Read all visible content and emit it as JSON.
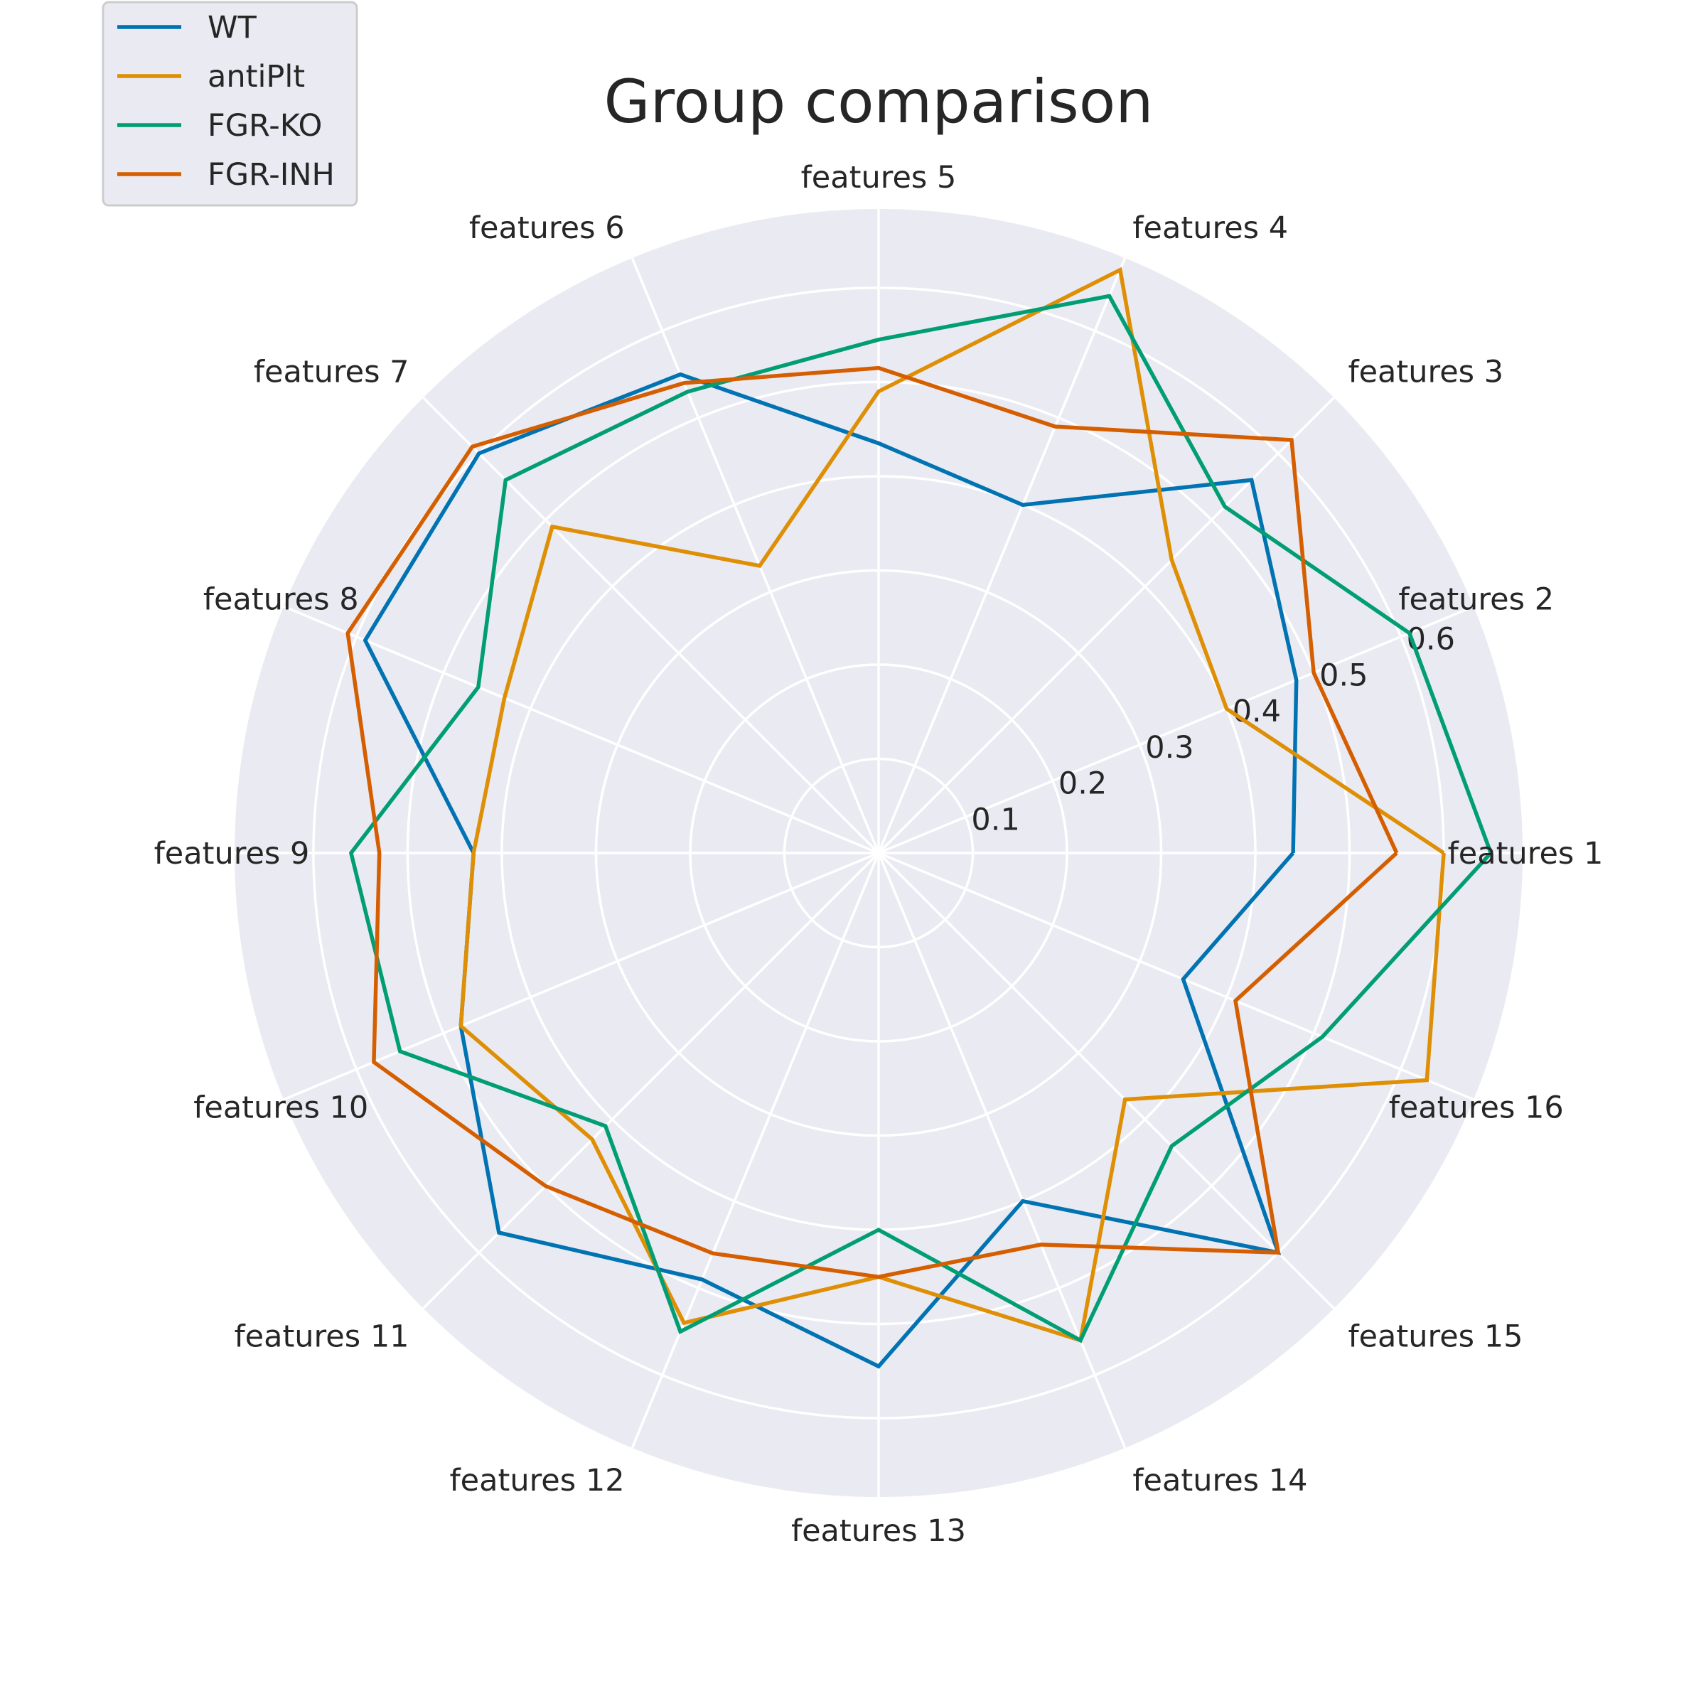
{
  "chart_data": {
    "type": "radar",
    "title": "Group comparison",
    "features": [
      "features 1",
      "features 2",
      "features 3",
      "features 4",
      "features 5",
      "features 6",
      "features 7",
      "features 8",
      "features 9",
      "features 10",
      "features 11",
      "features 12",
      "features 13",
      "features 14",
      "features 15",
      "features 16"
    ],
    "rlim": [
      0,
      0.6837
    ],
    "rticks": [
      0.1,
      0.2,
      0.3,
      0.4,
      0.5,
      0.6
    ],
    "rtick_labels": [
      "0.1",
      "0.2",
      "0.3",
      "0.4",
      "0.5",
      "0.6"
    ],
    "grid": true,
    "legend_position": "top-left",
    "series": [
      {
        "name": "WT",
        "color": "#0173b2",
        "values": [
          0.44,
          0.48,
          0.56,
          0.4,
          0.435,
          0.55,
          0.6,
          0.59,
          0.43,
          0.48,
          0.57,
          0.49,
          0.545,
          0.4,
          0.6,
          0.35
        ]
      },
      {
        "name": "antiPlt",
        "color": "#de8f05",
        "values": [
          0.6,
          0.4,
          0.44,
          0.67,
          0.49,
          0.33,
          0.49,
          0.43,
          0.43,
          0.48,
          0.43,
          0.54,
          0.45,
          0.56,
          0.37,
          0.63
        ]
      },
      {
        "name": "FGR-KO",
        "color": "#029e73",
        "values": [
          0.65,
          0.61,
          0.52,
          0.64,
          0.545,
          0.53,
          0.56,
          0.46,
          0.56,
          0.55,
          0.41,
          0.55,
          0.4,
          0.56,
          0.44,
          0.51
        ]
      },
      {
        "name": "FGR-INH",
        "color": "#d55e00",
        "values": [
          0.55,
          0.5,
          0.62,
          0.49,
          0.515,
          0.54,
          0.61,
          0.61,
          0.53,
          0.58,
          0.5,
          0.46,
          0.45,
          0.45,
          0.6,
          0.41
        ]
      }
    ]
  }
}
